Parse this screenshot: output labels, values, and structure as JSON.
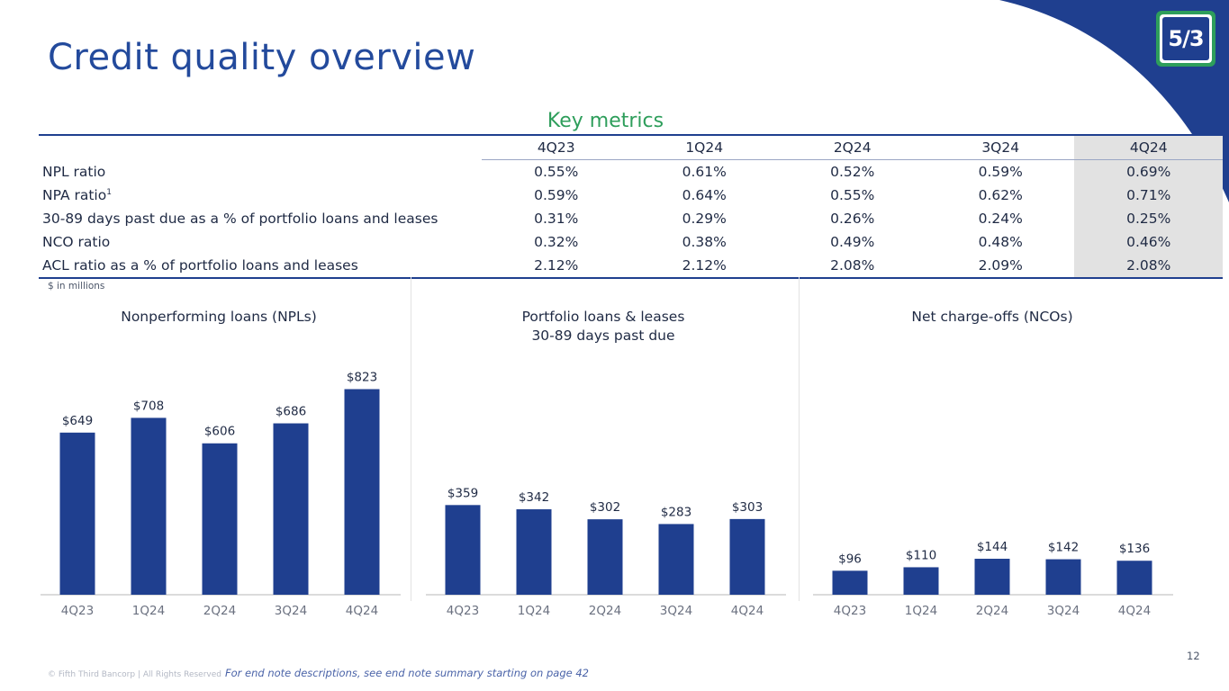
{
  "title": "Credit quality overview",
  "logo": {
    "text": "5/3"
  },
  "key_metrics": {
    "title": "Key metrics",
    "periods": [
      "4Q23",
      "1Q24",
      "2Q24",
      "3Q24",
      "4Q24"
    ],
    "rows": [
      {
        "label": "NPL ratio",
        "sup": "",
        "values": [
          "0.55%",
          "0.61%",
          "0.52%",
          "0.59%",
          "0.69%"
        ]
      },
      {
        "label": "NPA ratio",
        "sup": "1",
        "values": [
          "0.59%",
          "0.64%",
          "0.55%",
          "0.62%",
          "0.71%"
        ]
      },
      {
        "label": "30-89 days past due as a % of portfolio loans and leases",
        "sup": "",
        "values": [
          "0.31%",
          "0.29%",
          "0.26%",
          "0.24%",
          "0.25%"
        ]
      },
      {
        "label": "NCO ratio",
        "sup": "",
        "values": [
          "0.32%",
          "0.38%",
          "0.49%",
          "0.48%",
          "0.46%"
        ]
      },
      {
        "label": "ACL ratio as a % of portfolio loans and leases",
        "sup": "",
        "values": [
          "2.12%",
          "2.12%",
          "2.08%",
          "2.09%",
          "2.08%"
        ]
      }
    ]
  },
  "units_note": "$ in millions",
  "colors": {
    "bar": "#1f3f8f",
    "accent_green": "#2e9e5b",
    "title_blue": "#234a9c",
    "highlight": "#e2e2e2"
  },
  "chart_data": [
    {
      "type": "bar",
      "title": "Nonperforming loans (NPLs)",
      "subtitle": "",
      "categories": [
        "4Q23",
        "1Q24",
        "2Q24",
        "3Q24",
        "4Q24"
      ],
      "values": [
        649,
        708,
        606,
        686,
        823
      ],
      "labels": [
        "$649",
        "$708",
        "$606",
        "$686",
        "$823"
      ],
      "xlabel": "",
      "ylabel": "",
      "ylim": [
        0,
        850
      ]
    },
    {
      "type": "bar",
      "title": "Portfolio loans & leases",
      "subtitle": "30-89 days past due",
      "categories": [
        "4Q23",
        "1Q24",
        "2Q24",
        "3Q24",
        "4Q24"
      ],
      "values": [
        359,
        342,
        302,
        283,
        303
      ],
      "labels": [
        "$359",
        "$342",
        "$302",
        "$283",
        "$303"
      ],
      "xlabel": "",
      "ylabel": "",
      "ylim": [
        0,
        850
      ]
    },
    {
      "type": "bar",
      "title": "Net charge-offs (NCOs)",
      "subtitle": "",
      "categories": [
        "4Q23",
        "1Q24",
        "2Q24",
        "3Q24",
        "4Q24"
      ],
      "values": [
        96,
        110,
        144,
        142,
        136
      ],
      "labels": [
        "$96",
        "$110",
        "$144",
        "$142",
        "$136"
      ],
      "xlabel": "",
      "ylabel": "",
      "ylim": [
        0,
        850
      ]
    }
  ],
  "footer": {
    "copyright": "© Fifth Third Bancorp | All Rights Reserved",
    "note": "For end note descriptions, see end note summary starting on page 42",
    "page_number": "12"
  }
}
